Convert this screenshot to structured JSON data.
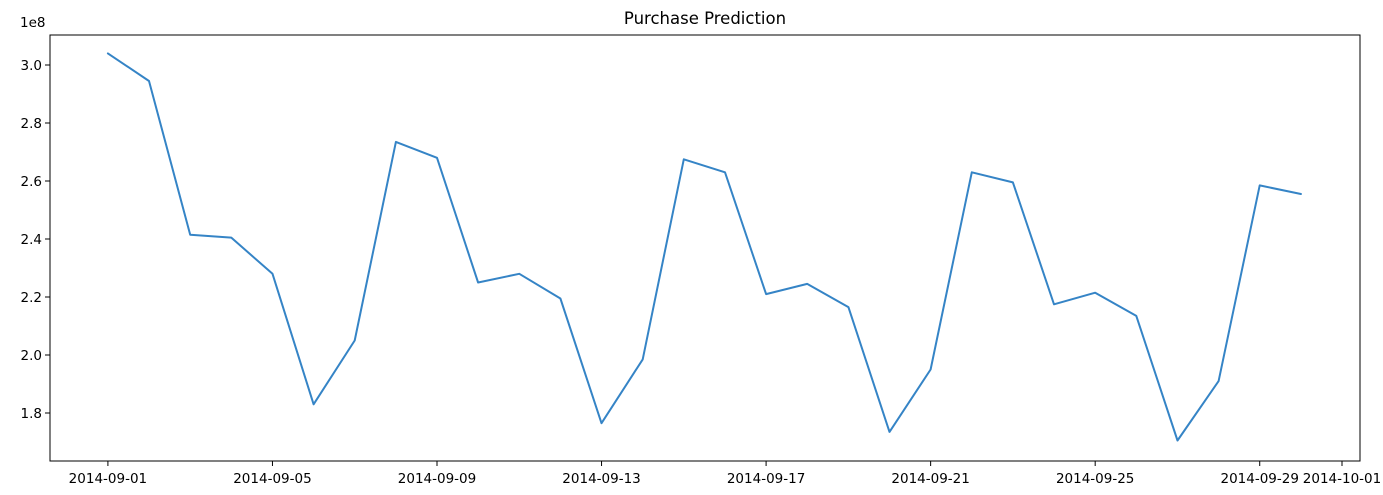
{
  "chart_data": {
    "type": "line",
    "title": "Purchase Prediction",
    "xlabel": "",
    "ylabel": "",
    "y_offset_label": "1e8",
    "x_axis_type": "date",
    "xlim": [
      "2014-08-29",
      "2014-10-01"
    ],
    "ylim": [
      1.65,
      3.1
    ],
    "y_scale_note": "values in units of 1e8",
    "grid": false,
    "line_color": "#3584c6",
    "x_ticks": [
      {
        "date": "2014-09-01",
        "label": "2014-09-01"
      },
      {
        "date": "2014-09-05",
        "label": "2014-09-05"
      },
      {
        "date": "2014-09-09",
        "label": "2014-09-09"
      },
      {
        "date": "2014-09-13",
        "label": "2014-09-13"
      },
      {
        "date": "2014-09-17",
        "label": "2014-09-17"
      },
      {
        "date": "2014-09-21",
        "label": "2014-09-21"
      },
      {
        "date": "2014-09-25",
        "label": "2014-09-25"
      },
      {
        "date": "2014-09-29",
        "label": "2014-09-29"
      },
      {
        "date": "2014-10-01",
        "label": "2014-10-01"
      }
    ],
    "y_ticks": [
      {
        "value": 1.8,
        "label": "1.8"
      },
      {
        "value": 2.0,
        "label": "2.0"
      },
      {
        "value": 2.2,
        "label": "2.2"
      },
      {
        "value": 2.4,
        "label": "2.4"
      },
      {
        "value": 2.6,
        "label": "2.6"
      },
      {
        "value": 2.8,
        "label": "2.8"
      },
      {
        "value": 3.0,
        "label": "3.0"
      }
    ],
    "series": [
      {
        "x": [
          "2014-09-01",
          "2014-09-02",
          "2014-09-03",
          "2014-09-04",
          "2014-09-05",
          "2014-09-06",
          "2014-09-07",
          "2014-09-08",
          "2014-09-09",
          "2014-09-10",
          "2014-09-11",
          "2014-09-12",
          "2014-09-13",
          "2014-09-14",
          "2014-09-15",
          "2014-09-16",
          "2014-09-17",
          "2014-09-18",
          "2014-09-19",
          "2014-09-20",
          "2014-09-21",
          "2014-09-22",
          "2014-09-23",
          "2014-09-24",
          "2014-09-25",
          "2014-09-26",
          "2014-09-27",
          "2014-09-28",
          "2014-09-29",
          "2014-09-30"
        ],
        "y": [
          3.04,
          2.945,
          2.415,
          2.405,
          2.28,
          1.83,
          2.05,
          2.735,
          2.68,
          2.25,
          2.28,
          2.195,
          1.765,
          1.985,
          2.675,
          2.63,
          2.21,
          2.245,
          2.165,
          1.735,
          1.95,
          2.63,
          2.595,
          2.175,
          2.215,
          2.135,
          1.705,
          1.91,
          2.585,
          2.555
        ]
      }
    ]
  }
}
